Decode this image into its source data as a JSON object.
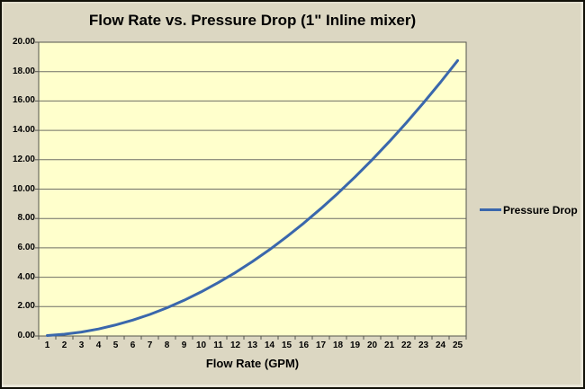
{
  "chart_data": {
    "type": "line",
    "title": "Flow Rate vs. Pressure Drop (1\" Inline mixer)",
    "xlabel": "Flow Rate (GPM)",
    "ylabel": "",
    "categories": [
      1,
      2,
      3,
      4,
      5,
      6,
      7,
      8,
      9,
      10,
      11,
      12,
      13,
      14,
      15,
      16,
      17,
      18,
      19,
      20,
      21,
      22,
      23,
      24,
      25
    ],
    "series": [
      {
        "name": "Pressure Drop",
        "values": [
          0.03,
          0.12,
          0.27,
          0.48,
          0.75,
          1.08,
          1.47,
          1.92,
          2.43,
          3.0,
          3.63,
          4.32,
          5.07,
          5.88,
          6.75,
          7.68,
          8.67,
          9.72,
          10.83,
          12.0,
          13.23,
          14.52,
          15.87,
          17.28,
          18.75
        ]
      }
    ],
    "ylim": [
      0,
      20
    ],
    "y_tick_labels": [
      "0.00",
      "2.00",
      "4.00",
      "6.00",
      "8.00",
      "10.00",
      "12.00",
      "14.00",
      "16.00",
      "18.00",
      "20.00"
    ],
    "grid": "horizontal",
    "legend_position": "right",
    "colors": {
      "line": "#3A67AC",
      "plot_bg": "#FFFFCC",
      "outer_bg": "#DCD7C2",
      "grid": "#6F6F66",
      "axis": "#55554E",
      "text": "#000000"
    }
  }
}
